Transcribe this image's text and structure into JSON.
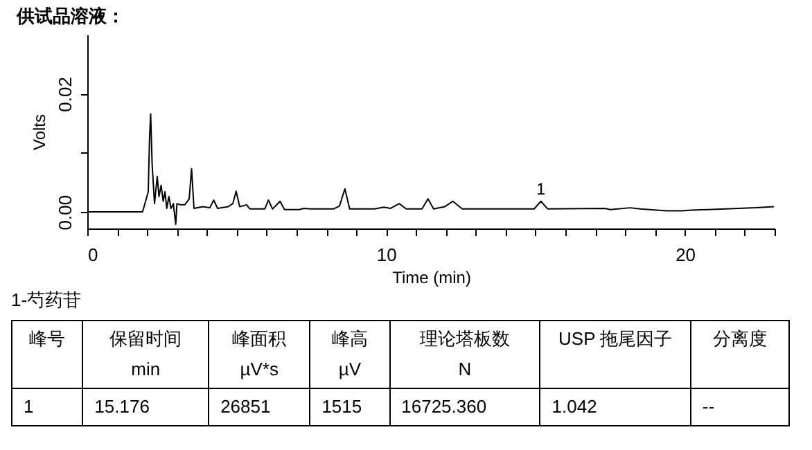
{
  "chart_data": {
    "type": "line",
    "title": "供试品溶液：",
    "xlabel": "Time (min)",
    "ylabel": "Volts",
    "x": [
      0,
      1.85,
      2.04,
      2.08,
      2.12,
      2.17,
      2.25,
      2.34,
      2.4,
      2.47,
      2.54,
      2.6,
      2.66,
      2.73,
      2.8,
      2.88,
      2.96,
      3.0,
      3.11,
      3.26,
      3.41,
      3.49,
      3.57,
      3.87,
      4.1,
      4.23,
      4.36,
      4.72,
      4.87,
      4.98,
      5.1,
      5.33,
      5.44,
      5.71,
      5.94,
      6.06,
      6.2,
      6.45,
      6.6,
      7.09,
      7.25,
      7.47,
      8.24,
      8.44,
      8.62,
      8.78,
      9.62,
      9.92,
      10.15,
      10.44,
      10.67,
      11.2,
      11.4,
      11.59,
      11.97,
      12.23,
      12.55,
      14.95,
      15.18,
      15.41,
      17.32,
      17.5,
      18.16,
      18.5,
      19.38,
      19.9,
      20.23,
      22.37,
      22.98
    ],
    "values": [
      0,
      0,
      0.0034,
      0.012,
      0.0166,
      0.008,
      0.0014,
      0.006,
      0.0026,
      0.0045,
      0.0018,
      0.0034,
      0.0006,
      0.0026,
      0.0006,
      0.0014,
      -0.0021,
      0.0014,
      0.0012,
      0.0012,
      0.0022,
      0.0073,
      0.0006,
      0.0009,
      0.0007,
      0.002,
      0.0006,
      0.0009,
      0.0014,
      0.0035,
      0.0009,
      0.0012,
      0.0005,
      0.0005,
      0.0005,
      0.002,
      0.0005,
      0.0018,
      0.0004,
      0.0004,
      0.0006,
      0.0005,
      0.0005,
      0.001,
      0.0039,
      0.0005,
      0.0005,
      0.0008,
      0.0006,
      0.0014,
      0.0005,
      0.0005,
      0.0022,
      0.0005,
      0.0009,
      0.0018,
      0.0005,
      0.0005,
      0.0018,
      0.0005,
      0.0006,
      0.0004,
      0.0007,
      0.0005,
      0.0002,
      0.0002,
      0.0003,
      0.0007,
      0.0009
    ],
    "color": "#000000",
    "xlim": [
      0,
      23
    ],
    "ylim": [
      -0.0028,
      0.03
    ],
    "xticks": [
      0,
      {
        "value": 1,
        "label": null
      },
      {
        "value": 2,
        "label": null
      },
      {
        "value": 3,
        "label": null
      },
      {
        "value": 4,
        "label": null
      },
      {
        "value": 5,
        "label": null
      },
      {
        "value": 6,
        "label": null
      },
      {
        "value": 7,
        "label": null
      },
      {
        "value": 8,
        "label": null
      },
      {
        "value": 9,
        "label": null
      },
      10,
      {
        "value": 11,
        "label": null
      },
      {
        "value": 12,
        "label": null
      },
      {
        "value": 13,
        "label": null
      },
      {
        "value": 14,
        "label": null
      },
      {
        "value": 15,
        "label": null
      },
      {
        "value": 16,
        "label": null
      },
      {
        "value": 17,
        "label": null
      },
      {
        "value": 18,
        "label": null
      },
      {
        "value": 19,
        "label": null
      },
      20,
      {
        "value": 21,
        "label": null
      },
      {
        "value": 22,
        "label": null
      },
      {
        "value": 23,
        "label": null
      }
    ],
    "yticks": [
      {
        "value": 0,
        "label": "0.00"
      },
      {
        "value": 0.01,
        "label": null
      },
      {
        "value": 0.02,
        "label": "0.02"
      }
    ],
    "grid": false,
    "annotations": [
      {
        "text": "1",
        "x": 15.18,
        "y": 0.0018
      },
      "1-芍药苷",
      "峰号",
      "保留时间\nmin",
      "峰面积\nµV*s",
      "峰高\nµV",
      "理论塔板数\nN",
      "USP 拖尾因子",
      "分离度",
      "1",
      "15.176",
      "26851",
      "1515",
      "16725.360",
      "1.042",
      "--"
    ]
  }
}
